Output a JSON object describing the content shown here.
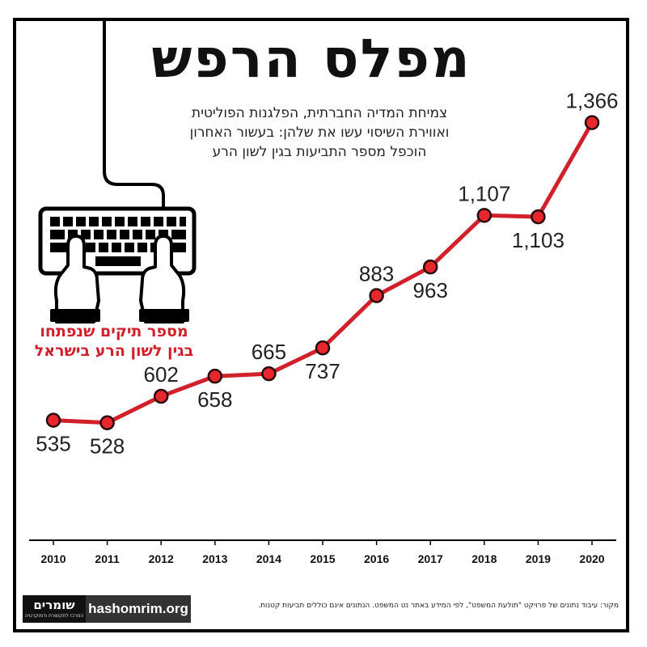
{
  "title": "מפלס הרפש",
  "subtitle_lines": [
    "צמיחת המדיה החברתית, הפלגנות הפוליטית",
    "ואווירת השיסוי עשו את שלהן: בעשור האחרון",
    "הוכפל מספר התביעות בגין לשון הרע"
  ],
  "series_label_lines": [
    "מספר תיקים שנפתחו",
    "בגין לשון הרע בישראל"
  ],
  "logo": {
    "name": "שומרים",
    "tagline": "המרכז לתקשורת ודמוקרטיה"
  },
  "url": "hashomrim.org",
  "source": "מקור: עיבוד נתונים של פרויקט \"תולעת המשפט\", לפי המידע באתר נט המשפט. הנתונים אינם כוללים תביעות קטנות.",
  "colors": {
    "line": "#d0202a",
    "marker_fill": "#e8262e",
    "text": "#222222",
    "frame": "#000000"
  },
  "icons": [
    "keyboard-icon",
    "typing-hands-icon"
  ],
  "chart_data": {
    "type": "line",
    "x": [
      "2010",
      "2011",
      "2012",
      "2013",
      "2014",
      "2015",
      "2016",
      "2017",
      "2018",
      "2019",
      "2020"
    ],
    "values": [
      535,
      528,
      602,
      658,
      665,
      737,
      883,
      963,
      1107,
      1103,
      1366
    ],
    "data_labels": [
      "535",
      "528",
      "602",
      "658",
      "665",
      "737",
      "883",
      "963",
      "1,107",
      "1,103",
      "1,366"
    ],
    "label_position": [
      "below",
      "below",
      "above",
      "below",
      "above",
      "below",
      "above",
      "below",
      "above",
      "below",
      "above"
    ],
    "ylim": [
      200,
      1600
    ],
    "grid": false,
    "legend": "none"
  }
}
